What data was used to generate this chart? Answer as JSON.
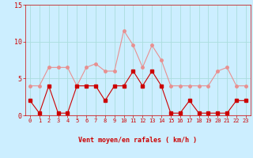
{
  "x": [
    0,
    1,
    2,
    3,
    4,
    5,
    6,
    7,
    8,
    9,
    10,
    11,
    12,
    13,
    14,
    15,
    16,
    17,
    18,
    19,
    20,
    21,
    22,
    23
  ],
  "wind_avg": [
    2,
    0.3,
    4,
    0.3,
    0.3,
    4,
    4,
    4,
    2,
    4,
    4,
    6,
    4,
    6,
    4,
    0.3,
    0.3,
    2,
    0.3,
    0.3,
    0.3,
    0.3,
    2,
    2
  ],
  "wind_gust": [
    4,
    4,
    6.5,
    6.5,
    6.5,
    4,
    6.5,
    7,
    6,
    6,
    11.5,
    9.5,
    6.5,
    9.5,
    7.5,
    4,
    4,
    4,
    4,
    4,
    6,
    6.5,
    4,
    4
  ],
  "avg_color": "#cc0000",
  "gust_color": "#e89090",
  "bg_color": "#cceeff",
  "grid_color": "#aadddd",
  "axis_color": "#cc0000",
  "xlabel": "Vent moyen/en rafales ( km/h )",
  "ylim": [
    0,
    15
  ],
  "yticks": [
    0,
    5,
    10,
    15
  ],
  "xtick_labels": [
    "0",
    "1",
    "2",
    "3",
    "4",
    "5",
    "6",
    "7",
    "8",
    "9",
    "10",
    "11",
    "12",
    "13",
    "14",
    "15",
    "16",
    "17",
    "18",
    "19",
    "20",
    "21",
    "22",
    "23"
  ],
  "marker_size": 2.5,
  "linewidth": 0.8,
  "title_fontsize": 6,
  "xlabel_fontsize": 6,
  "ytick_fontsize": 6,
  "xtick_fontsize": 5
}
